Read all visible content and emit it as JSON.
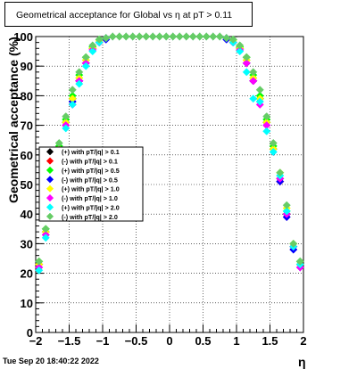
{
  "title": "Geometrical acceptance for Global vs    η  at pT > 0.11",
  "footer_timestamp": "Tue Sep 20 18:40:22 2022",
  "chart_data": {
    "type": "scatter",
    "xlabel": "η",
    "ylabel": "Geometrical acceptance (%)",
    "xlim": [
      -2,
      2
    ],
    "ylim": [
      0,
      100
    ],
    "x_ticks": [
      "−2",
      "−1.5",
      "−1",
      "−0.5",
      "0",
      "0.5",
      "1",
      "1.5",
      "2"
    ],
    "y_ticks": [
      "0",
      "10",
      "20",
      "30",
      "40",
      "50",
      "60",
      "70",
      "80",
      "90",
      "100"
    ],
    "grid": true,
    "legend_position": "left-middle",
    "x": [
      -1.95,
      -1.85,
      -1.75,
      -1.65,
      -1.55,
      -1.45,
      -1.35,
      -1.25,
      -1.15,
      -1.05,
      -0.95,
      -0.85,
      -0.75,
      -0.65,
      -0.55,
      -0.45,
      -0.35,
      -0.25,
      -0.15,
      -0.05,
      0.05,
      0.15,
      0.25,
      0.35,
      0.45,
      0.55,
      0.65,
      0.75,
      0.85,
      0.95,
      1.05,
      1.15,
      1.25,
      1.35,
      1.45,
      1.55,
      1.65,
      1.75,
      1.85,
      1.95
    ],
    "series": [
      {
        "name": "(+) with pT/|q| > 0.1",
        "color": "#000000",
        "values": [
          23,
          34,
          48,
          62,
          71,
          79,
          86,
          92,
          96,
          98.5,
          99.5,
          100,
          100,
          100,
          100,
          100,
          100,
          100,
          100,
          100,
          100,
          100,
          100,
          100,
          100,
          100,
          100,
          100,
          99.5,
          98.5,
          96,
          92,
          86,
          79,
          71,
          62,
          52,
          40,
          29,
          23
        ]
      },
      {
        "name": "(-) with pT/|q| > 0.1",
        "color": "#ff0000",
        "values": [
          23,
          33,
          47,
          61,
          70,
          78,
          85,
          91,
          95.5,
          98,
          99.5,
          100,
          100,
          100,
          100,
          100,
          100,
          100,
          100,
          100,
          100,
          100,
          100,
          100,
          100,
          100,
          100,
          100,
          99.5,
          98,
          95.5,
          91,
          85,
          78,
          70,
          61,
          51,
          39,
          28,
          22
        ]
      },
      {
        "name": "(+) with pT/|q| > 0.5",
        "color": "#00ff00",
        "values": [
          24,
          35,
          49,
          63,
          72,
          80,
          87,
          93,
          96.5,
          99,
          99.5,
          100,
          100,
          100,
          100,
          100,
          100,
          100,
          100,
          100,
          100,
          100,
          100,
          100,
          100,
          100,
          100,
          100,
          99.5,
          99,
          96.5,
          93,
          87,
          80,
          72,
          63,
          53,
          41,
          30,
          24
        ]
      },
      {
        "name": "(-) with pT/|q| > 0.5",
        "color": "#0000ff",
        "values": [
          22,
          33,
          47,
          61,
          70,
          78,
          85,
          91,
          95.5,
          98,
          99,
          100,
          100,
          100,
          100,
          100,
          100,
          100,
          100,
          100,
          100,
          100,
          100,
          100,
          100,
          100,
          100,
          100,
          99,
          98,
          95.5,
          91,
          85,
          78,
          70,
          61,
          51,
          39,
          28,
          22
        ]
      },
      {
        "name": "(+) with pT/|q| > 1.0",
        "color": "#ffff00",
        "values": [
          23,
          34,
          48,
          62,
          71,
          79,
          86,
          92,
          96,
          98.5,
          99.5,
          100,
          100,
          100,
          100,
          100,
          100,
          100,
          100,
          100,
          100,
          100,
          100,
          100,
          100,
          100,
          100,
          100,
          99.5,
          98.5,
          96,
          92,
          86,
          79,
          71,
          62,
          54,
          42,
          30,
          23
        ]
      },
      {
        "name": "(-) with pT/|q| > 1.0",
        "color": "#ff00ff",
        "values": [
          22,
          33,
          47,
          61,
          70,
          77,
          85,
          91,
          95.5,
          98,
          99.5,
          100,
          100,
          100,
          100,
          100,
          100,
          100,
          100,
          100,
          100,
          100,
          100,
          100,
          100,
          100,
          100,
          100,
          99.5,
          98,
          95.5,
          91,
          85,
          77,
          70,
          61,
          52,
          40,
          29,
          22
        ]
      },
      {
        "name": "(+) with pT/|q| > 2.0",
        "color": "#00ffff",
        "values": [
          21,
          32,
          46,
          60,
          69,
          77,
          84,
          90,
          95,
          98,
          99.5,
          100,
          100,
          100,
          100,
          100,
          100,
          100,
          100,
          100,
          100,
          100,
          100,
          100,
          100,
          100,
          100,
          100,
          99.5,
          98,
          95,
          88,
          79,
          78,
          68,
          61,
          53,
          41,
          29,
          23
        ]
      },
      {
        "name": "(-) with pT/|q| > 2.0",
        "color": "#66cc66",
        "values": [
          24,
          35,
          50,
          64,
          73,
          82,
          88,
          93,
          97,
          99,
          99.5,
          100,
          100,
          100,
          100,
          100,
          100,
          100,
          100,
          100,
          100,
          100,
          100,
          100,
          100,
          100,
          100,
          100,
          99.5,
          99,
          97,
          93,
          88,
          82,
          73,
          64,
          54,
          43,
          30,
          24
        ]
      }
    ]
  }
}
